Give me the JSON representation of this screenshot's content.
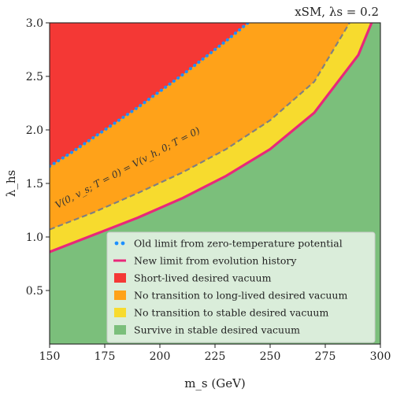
{
  "chart_data": {
    "type": "area",
    "title": "xSM, λs = 0.2",
    "xlabel": "m_s (GeV)",
    "ylabel": "λ_hs",
    "xlim": [
      150,
      300
    ],
    "ylim": [
      0.0,
      3.0
    ],
    "xticks": [
      150,
      175,
      200,
      225,
      250,
      275,
      300
    ],
    "yticks": [
      0.5,
      1.0,
      1.5,
      2.0,
      2.5,
      3.0
    ],
    "ytick_labels": [
      "0.5",
      "1.0",
      "1.5",
      "2.0",
      "2.5",
      "3.0"
    ],
    "grid": false,
    "legend_position": "bottom-right",
    "annotation": "V(0, v_s; T = 0) = V(v_h, 0; T = 0)",
    "curves": {
      "old_limit": {
        "x": [
          150,
          160,
          170,
          180,
          190,
          200,
          210,
          220,
          230,
          240
        ],
        "y": [
          1.66,
          1.79,
          1.93,
          2.07,
          2.21,
          2.36,
          2.51,
          2.67,
          2.83,
          3.0
        ]
      },
      "equal_vacua": {
        "x": [
          150,
          170,
          190,
          210,
          230,
          250,
          270,
          286
        ],
        "y": [
          1.07,
          1.23,
          1.41,
          1.6,
          1.82,
          2.09,
          2.45,
          3.0
        ]
      },
      "new_limit": {
        "x": [
          150,
          170,
          190,
          210,
          230,
          250,
          270,
          290,
          296
        ],
        "y": [
          0.86,
          1.02,
          1.18,
          1.36,
          1.57,
          1.82,
          2.16,
          2.7,
          3.0
        ]
      }
    },
    "series": [
      {
        "name": "Old limit from zero-temperature potential",
        "style": "dotted",
        "color": "#1e90ff"
      },
      {
        "name": "New limit from evolution history",
        "style": "solid",
        "color": "#e8287a"
      },
      {
        "name": "Short-lived desired vacuum",
        "style": "fill",
        "color": "#f43835"
      },
      {
        "name": "No transition to long-lived desired vacuum",
        "style": "fill",
        "color": "#ffa219"
      },
      {
        "name": "No transition to stable desired vacuum",
        "style": "fill",
        "color": "#f7db2e"
      },
      {
        "name": "Survive in stable desired vacuum",
        "style": "fill",
        "color": "#7bbf7b"
      }
    ],
    "colors": {
      "equal_vacua_line": "#808080"
    }
  }
}
